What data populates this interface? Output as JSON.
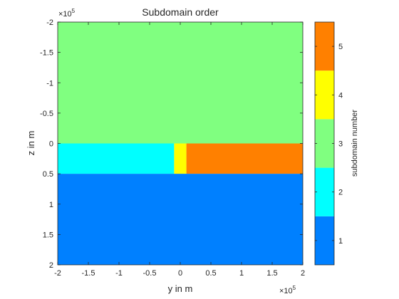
{
  "figure": {
    "title": "Subdomain order",
    "xlabel": "y in m",
    "ylabel": "z in m",
    "x_exponent_base": "×10",
    "x_exponent_power": "5",
    "y_exponent_base": "×10",
    "y_exponent_power": "5",
    "colorbar_label": "subdomain number"
  },
  "chart_data": {
    "type": "heatmap",
    "title": "Subdomain order",
    "xlabel": "y in m",
    "ylabel": "z in m",
    "x_scale_factor": 100000,
    "y_scale_factor": 100000,
    "xlim": [
      -2,
      2
    ],
    "ylim": [
      -2,
      2
    ],
    "y_reversed": true,
    "x_ticks": [
      "-2",
      "-1.5",
      "-1",
      "-0.5",
      "0",
      "0.5",
      "1",
      "1.5",
      "2"
    ],
    "y_ticks": [
      "-2",
      "-1.5",
      "-1",
      "-0.5",
      "0",
      "0.5",
      "1",
      "1.5",
      "2"
    ],
    "regions": [
      {
        "subdomain": 3,
        "y": [
          -2,
          2
        ],
        "z": [
          -2,
          0
        ]
      },
      {
        "subdomain": 2,
        "y": [
          -2,
          -0.1
        ],
        "z": [
          0,
          0.5
        ]
      },
      {
        "subdomain": 4,
        "y": [
          -0.1,
          0.1
        ],
        "z": [
          0,
          0.5
        ]
      },
      {
        "subdomain": 5,
        "y": [
          0.1,
          2
        ],
        "z": [
          0,
          0.5
        ]
      },
      {
        "subdomain": 1,
        "y": [
          -2,
          2
        ],
        "z": [
          0.5,
          2
        ]
      }
    ],
    "colorbar": {
      "label": "subdomain number",
      "ticks": [
        "1",
        "2",
        "3",
        "4",
        "5"
      ],
      "range": [
        0.5,
        5.5
      ],
      "colors": {
        "1": "#0080ff",
        "2": "#00ffff",
        "3": "#80ff80",
        "4": "#ffff00",
        "5": "#ff8000"
      }
    },
    "grid": false
  }
}
